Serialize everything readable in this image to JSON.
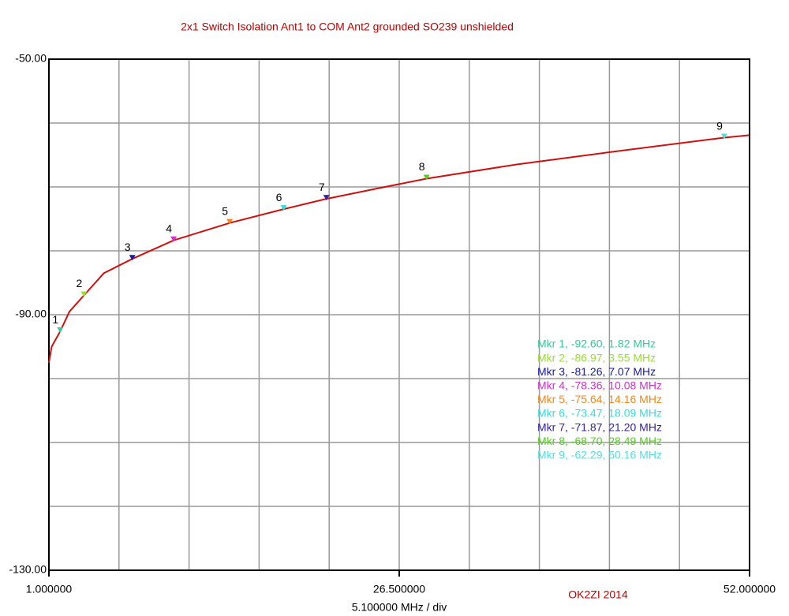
{
  "chart_data": {
    "type": "line",
    "title": "2x1 Switch Isolation Ant1 to COM Ant2  grounded  SO239 unshielded",
    "xlabel": "5.100000 MHz / div",
    "credit": "OK2ZI 2014",
    "xlim": [
      1,
      52
    ],
    "ylim": [
      -130,
      -50
    ],
    "xticks": [
      {
        "value": 1,
        "label": "1.000000"
      },
      {
        "value": 6.1,
        "label": null
      },
      {
        "value": 11.2,
        "label": null
      },
      {
        "value": 16.3,
        "label": null
      },
      {
        "value": 21.4,
        "label": null
      },
      {
        "value": 26.5,
        "label": "26.500000"
      },
      {
        "value": 31.6,
        "label": null
      },
      {
        "value": 36.7,
        "label": null
      },
      {
        "value": 41.8,
        "label": null
      },
      {
        "value": 46.9,
        "label": null
      },
      {
        "value": 52,
        "label": "52.000000"
      }
    ],
    "yticks": [
      {
        "value": -50,
        "label": "-50.00"
      },
      {
        "value": -60,
        "label": null
      },
      {
        "value": -70,
        "label": null
      },
      {
        "value": -80,
        "label": null
      },
      {
        "value": -90,
        "label": "-90.00"
      },
      {
        "value": -100,
        "label": null
      },
      {
        "value": -110,
        "label": null
      },
      {
        "value": -120,
        "label": null
      },
      {
        "value": -130,
        "label": "-130.00"
      }
    ],
    "grid": true,
    "series": [
      {
        "color": "#cc1111",
        "x": [
          1,
          1.2,
          1.82,
          2.5,
          3.55,
          5,
          7.07,
          10.08,
          14.16,
          18.09,
          21.2,
          25,
          28.49,
          35,
          42,
          50.16,
          52
        ],
        "values": [
          -97.5,
          -95,
          -92.6,
          -89.5,
          -86.97,
          -83.5,
          -81.26,
          -78.36,
          -75.64,
          -73.47,
          -71.87,
          -70.2,
          -68.7,
          -66.5,
          -64.5,
          -62.29,
          -61.9
        ]
      }
    ],
    "markers": [
      {
        "label": "1",
        "legend": "Mkr 1, -92.60, 1.82 MHz",
        "x": 1.82,
        "y": -92.6,
        "color": "#33cc99"
      },
      {
        "label": "2",
        "legend": "Mkr 2, -86.97, 3.55 MHz",
        "x": 3.55,
        "y": -86.97,
        "color": "#99dd33"
      },
      {
        "label": "3",
        "legend": "Mkr 3, -81.26, 7.07 MHz",
        "x": 7.07,
        "y": -81.26,
        "color": "#1a1aa0"
      },
      {
        "label": "4",
        "legend": "Mkr 4, -78.36, 10.08 MHz",
        "x": 10.08,
        "y": -78.36,
        "color": "#cc33cc"
      },
      {
        "label": "5",
        "legend": "Mkr 5, -75.64, 14.16 MHz",
        "x": 14.16,
        "y": -75.64,
        "color": "#ee8822"
      },
      {
        "label": "6",
        "legend": "Mkr 6, -73.47, 18.09 MHz",
        "x": 18.09,
        "y": -73.47,
        "color": "#33dddd"
      },
      {
        "label": "7",
        "legend": "Mkr 7, -71.87, 21.20 MHz",
        "x": 21.2,
        "y": -71.87,
        "color": "#3322aa"
      },
      {
        "label": "8",
        "legend": "Mkr 8, -68.70, 28.49 MHz",
        "x": 28.49,
        "y": -68.7,
        "color": "#55cc22"
      },
      {
        "label": "9",
        "legend": "Mkr 9, -62.29, 50.16 MHz",
        "x": 50.16,
        "y": -62.29,
        "color": "#55dddd"
      }
    ]
  }
}
